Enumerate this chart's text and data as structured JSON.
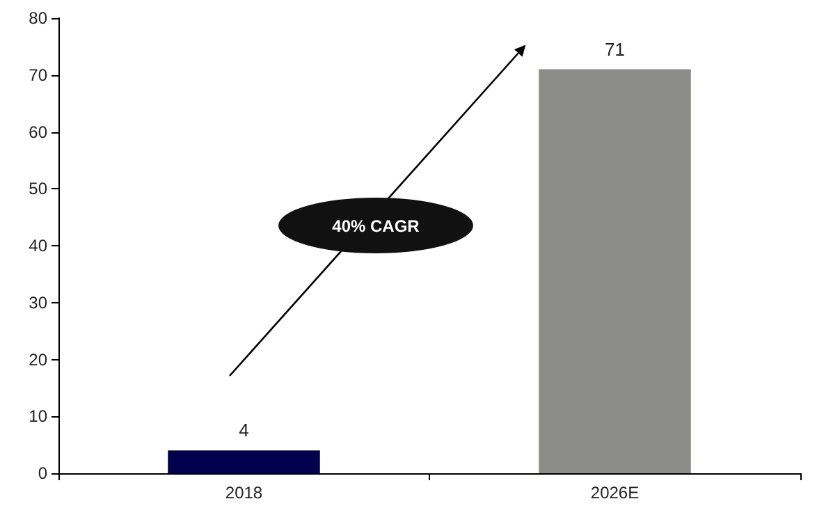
{
  "chart_data": {
    "type": "bar",
    "categories": [
      "2018",
      "2026E"
    ],
    "values": [
      4,
      71
    ],
    "colors": [
      "#00004d",
      "#8c8c89"
    ],
    "ylim": [
      0,
      80
    ],
    "yticks": [
      0,
      10,
      20,
      30,
      40,
      50,
      60,
      70,
      80
    ],
    "grid": false,
    "data_labels": true,
    "annotations": [
      "40% CAGR"
    ]
  }
}
